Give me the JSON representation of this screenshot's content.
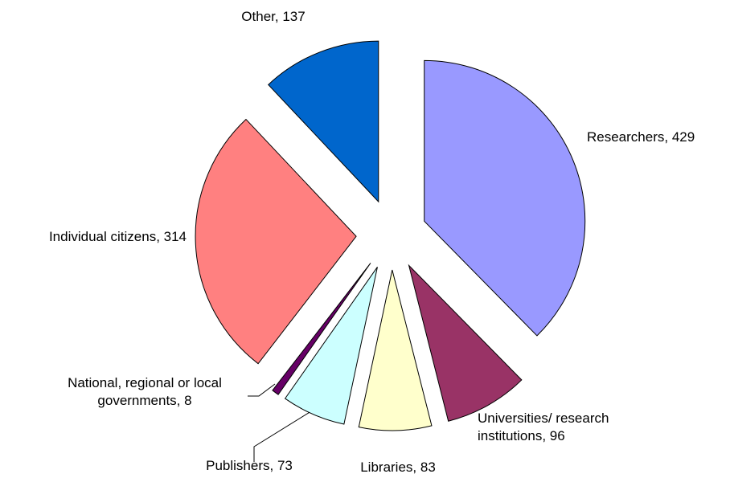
{
  "chart_data": {
    "type": "pie",
    "values": [
      429,
      96,
      83,
      73,
      8,
      314,
      137
    ],
    "value_labels": [
      "Researchers, 429",
      "Universities/ research institutions, 96",
      "Libraries, 83",
      "Publishers, 73",
      "National, regional or local governments, 8",
      "Individual citizens, 314",
      "Other, 137"
    ],
    "colors": [
      "#9999ff",
      "#993366",
      "#ffffcc",
      "#ccffff",
      "#660066",
      "#ff8080",
      "#0066cc"
    ]
  }
}
